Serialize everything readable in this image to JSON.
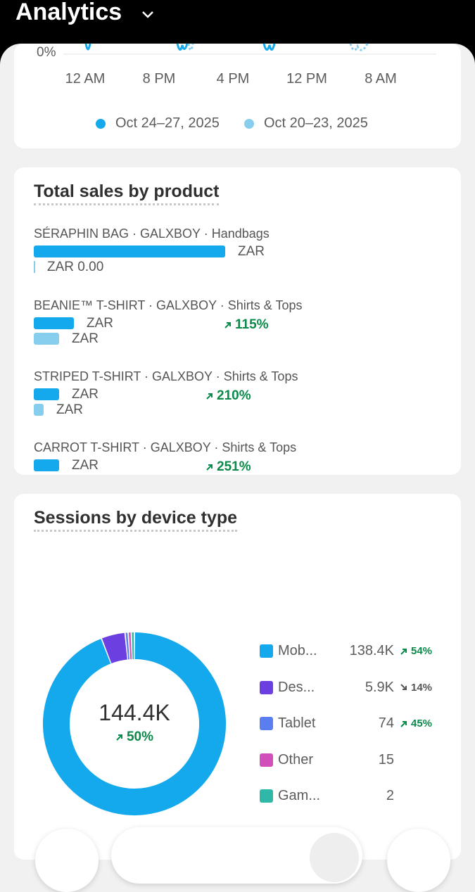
{
  "header": {
    "title": "Analytics"
  },
  "sessions_chart": {
    "y_label": "0%",
    "x_labels": [
      "12 AM",
      "8 PM",
      "4 PM",
      "12 PM",
      "8 AM"
    ],
    "legend": [
      {
        "name": "Oct 24–27, 2025",
        "color": "#14a8ec"
      },
      {
        "name": "Oct 20–23, 2025",
        "color": "#86cdee"
      }
    ]
  },
  "sales_by_product": {
    "title": "Total sales by product",
    "items": [
      {
        "name": "SÉRAPHIN BAG · GALXBOY · Handbags",
        "current": "ZAR",
        "previous": "ZAR 0.00"
      },
      {
        "name": "BEANIE™ T-SHIRT · GALXBOY · Shirts & Tops",
        "current": "ZAR",
        "previous": "ZAR",
        "change": "115%"
      },
      {
        "name": "STRIPED T-SHIRT · GALXBOY · Shirts & Tops",
        "current": "ZAR",
        "previous": "ZAR",
        "change": "210%"
      },
      {
        "name": "CARROT T-SHIRT · GALXBOY · Shirts & Tops",
        "current": "ZAR",
        "change": "251%"
      }
    ]
  },
  "sessions_by_device": {
    "title": "Sessions by device type",
    "total": "144.4K",
    "change": "50%",
    "devices": [
      {
        "name": "Mob...",
        "value": 138400,
        "value_label": "138.4K",
        "change": "54%",
        "trend": "up",
        "color": "#14a8ec"
      },
      {
        "name": "Des...",
        "value": 5900,
        "value_label": "5.9K",
        "change": "14%",
        "trend": "down",
        "color": "#6b3fe0"
      },
      {
        "name": "Tablet",
        "value": 74,
        "change": "45%",
        "trend": "up",
        "color": "#5a7ef0"
      },
      {
        "name": "Other",
        "value": 15,
        "color": "#d04fbb"
      },
      {
        "name": "Gam...",
        "value": 2,
        "color": "#2fb8a8"
      }
    ]
  }
}
